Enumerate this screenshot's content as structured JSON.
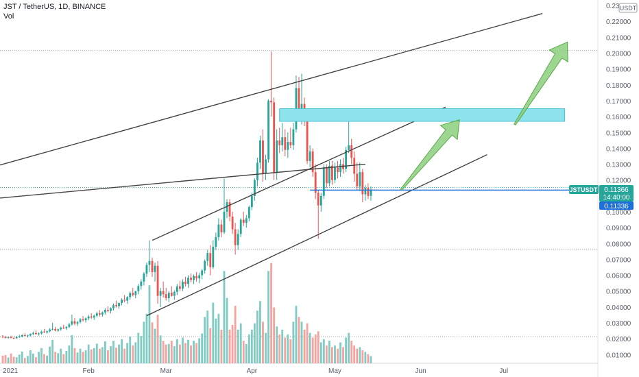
{
  "header": {
    "symbol_line": "JST / TetherUS, 1D, BINANCE",
    "volume_label": "Vol",
    "currency_badge": "USDT"
  },
  "price_badges": {
    "symbol": "JSTUSDT",
    "last_price": "0.11366",
    "countdown": "14:40:00",
    "prev_price": "0.11336"
  },
  "chart_data": {
    "type": "candlestick",
    "y_axis": {
      "ticks": [
        "0.23000",
        "0.22000",
        "0.21000",
        "0.20000",
        "0.19000",
        "0.18000",
        "0.17000",
        "0.16000",
        "0.15000",
        "0.14000",
        "0.13000",
        "0.12000",
        "0.11000",
        "0.10000",
        "0.09000",
        "0.08000",
        "0.07000",
        "0.06000",
        "0.05000",
        "0.04000",
        "0.03000",
        "0.02000",
        "0.01000"
      ],
      "range": [
        0.0045,
        0.2335
      ]
    },
    "x_axis": {
      "ticks": [
        {
          "label": "2021",
          "day": 0
        },
        {
          "label": "Feb",
          "day": 31
        },
        {
          "label": "Mar",
          "day": 59
        },
        {
          "label": "Apr",
          "day": 90
        },
        {
          "label": "May",
          "day": 120
        },
        {
          "label": "Jun",
          "day": 151
        },
        {
          "label": "Jul",
          "day": 181
        }
      ],
      "range_days": [
        0,
        215
      ]
    },
    "colors": {
      "up": "#26a69a",
      "down": "#ef5350",
      "vol_up": "#80cbc4",
      "vol_down": "#f4a39f",
      "level": "#1e6fd9",
      "box": "#8de3ec",
      "arrow": "#8ccf7e",
      "trend": "#444444"
    },
    "candles": [
      [
        0.0213,
        0.0222,
        0.0204,
        0.0209
      ],
      [
        0.0209,
        0.0218,
        0.0201,
        0.0206
      ],
      [
        0.0206,
        0.0214,
        0.0199,
        0.021
      ],
      [
        0.021,
        0.0219,
        0.0203,
        0.0204
      ],
      [
        0.0204,
        0.0212,
        0.0196,
        0.0203
      ],
      [
        0.0203,
        0.0216,
        0.0199,
        0.0212
      ],
      [
        0.0212,
        0.0225,
        0.0205,
        0.0214
      ],
      [
        0.0214,
        0.0228,
        0.0208,
        0.0223
      ],
      [
        0.0223,
        0.0236,
        0.0215,
        0.0217
      ],
      [
        0.0217,
        0.0226,
        0.0207,
        0.0221
      ],
      [
        0.0221,
        0.0234,
        0.0214,
        0.023
      ],
      [
        0.023,
        0.0245,
        0.0222,
        0.0236
      ],
      [
        0.0236,
        0.0252,
        0.0226,
        0.0228
      ],
      [
        0.0228,
        0.024,
        0.0219,
        0.0233
      ],
      [
        0.0233,
        0.0251,
        0.0226,
        0.0245
      ],
      [
        0.0245,
        0.0262,
        0.0236,
        0.024
      ],
      [
        0.024,
        0.0252,
        0.0231,
        0.0247
      ],
      [
        0.0247,
        0.0266,
        0.024,
        0.0258
      ],
      [
        0.0258,
        0.03,
        0.0252,
        0.0262
      ],
      [
        0.0262,
        0.0275,
        0.0246,
        0.0251
      ],
      [
        0.0251,
        0.0264,
        0.0243,
        0.0259
      ],
      [
        0.0259,
        0.0276,
        0.025,
        0.027
      ],
      [
        0.027,
        0.0288,
        0.0261,
        0.0265
      ],
      [
        0.0265,
        0.0279,
        0.0255,
        0.0274
      ],
      [
        0.0274,
        0.03,
        0.0266,
        0.029
      ],
      [
        0.029,
        0.0352,
        0.0282,
        0.031
      ],
      [
        0.031,
        0.033,
        0.0285,
        0.0295
      ],
      [
        0.0295,
        0.0312,
        0.028,
        0.0305
      ],
      [
        0.0305,
        0.0331,
        0.0296,
        0.0322
      ],
      [
        0.0322,
        0.0343,
        0.0308,
        0.0316
      ],
      [
        0.0316,
        0.0335,
        0.0302,
        0.0328
      ],
      [
        0.0328,
        0.035,
        0.0316,
        0.034
      ],
      [
        0.034,
        0.0361,
        0.0326,
        0.0333
      ],
      [
        0.0333,
        0.0352,
        0.0319,
        0.0345
      ],
      [
        0.0345,
        0.037,
        0.0334,
        0.036
      ],
      [
        0.036,
        0.038,
        0.034,
        0.0352
      ],
      [
        0.0352,
        0.0372,
        0.0339,
        0.0366
      ],
      [
        0.0366,
        0.0392,
        0.0352,
        0.0382
      ],
      [
        0.0382,
        0.0404,
        0.0366,
        0.0375
      ],
      [
        0.0375,
        0.0397,
        0.036,
        0.0392
      ],
      [
        0.0392,
        0.0422,
        0.0378,
        0.0412
      ],
      [
        0.0412,
        0.044,
        0.0396,
        0.0405
      ],
      [
        0.0405,
        0.0428,
        0.0388,
        0.0425
      ],
      [
        0.0425,
        0.0455,
        0.041,
        0.0446
      ],
      [
        0.0446,
        0.0475,
        0.043,
        0.044
      ],
      [
        0.044,
        0.0468,
        0.042,
        0.0462
      ],
      [
        0.0462,
        0.0498,
        0.0445,
        0.0488
      ],
      [
        0.0488,
        0.052,
        0.0466,
        0.0475
      ],
      [
        0.0475,
        0.0502,
        0.0455,
        0.05
      ],
      [
        0.05,
        0.0545,
        0.048,
        0.0532
      ],
      [
        0.0532,
        0.0575,
        0.051,
        0.056
      ],
      [
        0.056,
        0.062,
        0.0535,
        0.061
      ],
      [
        0.061,
        0.068,
        0.059,
        0.0665
      ],
      [
        0.0665,
        0.082,
        0.062,
        0.069
      ],
      [
        0.069,
        0.0712,
        0.059,
        0.062
      ],
      [
        0.062,
        0.068,
        0.056,
        0.066
      ],
      [
        0.066,
        0.069,
        0.042,
        0.047
      ],
      [
        0.047,
        0.052,
        0.04,
        0.05
      ],
      [
        0.05,
        0.056,
        0.046,
        0.048
      ],
      [
        0.048,
        0.052,
        0.044,
        0.0455
      ],
      [
        0.0455,
        0.05,
        0.043,
        0.049
      ],
      [
        0.049,
        0.053,
        0.0465,
        0.047
      ],
      [
        0.047,
        0.0505,
        0.0445,
        0.0495
      ],
      [
        0.0495,
        0.0545,
        0.0475,
        0.053
      ],
      [
        0.053,
        0.0565,
        0.05,
        0.0515
      ],
      [
        0.0515,
        0.0575,
        0.05,
        0.056
      ],
      [
        0.056,
        0.059,
        0.053,
        0.0545
      ],
      [
        0.0545,
        0.06,
        0.052,
        0.0585
      ],
      [
        0.0585,
        0.061,
        0.0555,
        0.057
      ],
      [
        0.057,
        0.0605,
        0.0545,
        0.0595
      ],
      [
        0.0595,
        0.062,
        0.056,
        0.058
      ],
      [
        0.058,
        0.0615,
        0.055,
        0.06
      ],
      [
        0.06,
        0.064,
        0.0575,
        0.063
      ],
      [
        0.063,
        0.07,
        0.061,
        0.069
      ],
      [
        0.069,
        0.076,
        0.066,
        0.074
      ],
      [
        0.074,
        0.079,
        0.06,
        0.065
      ],
      [
        0.065,
        0.082,
        0.064,
        0.078
      ],
      [
        0.078,
        0.087,
        0.076,
        0.084
      ],
      [
        0.084,
        0.096,
        0.082,
        0.092
      ],
      [
        0.092,
        0.095,
        0.084,
        0.087
      ],
      [
        0.087,
        0.121,
        0.086,
        0.1
      ],
      [
        0.1,
        0.108,
        0.096,
        0.106
      ],
      [
        0.106,
        0.108,
        0.094,
        0.097
      ],
      [
        0.097,
        0.1,
        0.086,
        0.089
      ],
      [
        0.089,
        0.093,
        0.073,
        0.079
      ],
      [
        0.079,
        0.089,
        0.076,
        0.086
      ],
      [
        0.086,
        0.096,
        0.084,
        0.095
      ],
      [
        0.095,
        0.1,
        0.091,
        0.093
      ],
      [
        0.093,
        0.098,
        0.09,
        0.096
      ],
      [
        0.096,
        0.104,
        0.094,
        0.103
      ],
      [
        0.103,
        0.112,
        0.101,
        0.11
      ],
      [
        0.11,
        0.121,
        0.107,
        0.12
      ],
      [
        0.12,
        0.134,
        0.116,
        0.131
      ],
      [
        0.131,
        0.148,
        0.127,
        0.145
      ],
      [
        0.145,
        0.152,
        0.119,
        0.124
      ],
      [
        0.124,
        0.136,
        0.12,
        0.133
      ],
      [
        0.133,
        0.171,
        0.131,
        0.17
      ],
      [
        0.17,
        0.201,
        0.16,
        0.169
      ],
      [
        0.169,
        0.172,
        0.12,
        0.125
      ],
      [
        0.125,
        0.152,
        0.12,
        0.145
      ],
      [
        0.145,
        0.153,
        0.137,
        0.142
      ],
      [
        0.142,
        0.156,
        0.138,
        0.147
      ],
      [
        0.147,
        0.152,
        0.135,
        0.139
      ],
      [
        0.139,
        0.15,
        0.134,
        0.144
      ],
      [
        0.144,
        0.153,
        0.14,
        0.142
      ],
      [
        0.142,
        0.156,
        0.139,
        0.152
      ],
      [
        0.152,
        0.186,
        0.15,
        0.178
      ],
      [
        0.178,
        0.185,
        0.158,
        0.162
      ],
      [
        0.162,
        0.187,
        0.155,
        0.168
      ],
      [
        0.168,
        0.172,
        0.154,
        0.157
      ],
      [
        0.157,
        0.16,
        0.13,
        0.132
      ],
      [
        0.132,
        0.142,
        0.128,
        0.138
      ],
      [
        0.138,
        0.14,
        0.122,
        0.125
      ],
      [
        0.125,
        0.13,
        0.108,
        0.112
      ],
      [
        0.112,
        0.114,
        0.083,
        0.104
      ],
      [
        0.104,
        0.112,
        0.1,
        0.11
      ],
      [
        0.11,
        0.13,
        0.108,
        0.128
      ],
      [
        0.128,
        0.13,
        0.115,
        0.118
      ],
      [
        0.118,
        0.132,
        0.116,
        0.129
      ],
      [
        0.129,
        0.132,
        0.117,
        0.12
      ],
      [
        0.12,
        0.131,
        0.118,
        0.128
      ],
      [
        0.128,
        0.132,
        0.121,
        0.125
      ],
      [
        0.125,
        0.133,
        0.122,
        0.13
      ],
      [
        0.13,
        0.134,
        0.124,
        0.127
      ],
      [
        0.127,
        0.141,
        0.125,
        0.139
      ],
      [
        0.139,
        0.165,
        0.137,
        0.142
      ],
      [
        0.142,
        0.146,
        0.13,
        0.134
      ],
      [
        0.134,
        0.138,
        0.119,
        0.124
      ],
      [
        0.124,
        0.131,
        0.114,
        0.116
      ],
      [
        0.116,
        0.131,
        0.113,
        0.125
      ],
      [
        0.125,
        0.127,
        0.106,
        0.111
      ],
      [
        0.111,
        0.117,
        0.107,
        0.115
      ],
      [
        0.115,
        0.118,
        0.108,
        0.11
      ],
      [
        0.11,
        0.116,
        0.107,
        0.1137
      ]
    ],
    "volumes": [
      0.0048,
      0.0052,
      0.0036,
      0.0062,
      0.0041,
      0.0038,
      0.0055,
      0.0074,
      0.0033,
      0.0046,
      0.0082,
      0.0061,
      0.0038,
      0.0072,
      0.0096,
      0.0058,
      0.0048,
      0.0105,
      0.0148,
      0.0072,
      0.0064,
      0.0092,
      0.0058,
      0.0078,
      0.0112,
      0.0178,
      0.0096,
      0.0068,
      0.0092,
      0.0072,
      0.0082,
      0.0118,
      0.0088,
      0.0096,
      0.0124,
      0.0092,
      0.0102,
      0.0138,
      0.0082,
      0.0108,
      0.0142,
      0.0098,
      0.0118,
      0.0152,
      0.0092,
      0.0128,
      0.0168,
      0.0112,
      0.0132,
      0.0192,
      0.0172,
      0.0262,
      0.0312,
      0.0492,
      0.0258,
      0.0218,
      0.0306,
      0.0176,
      0.0142,
      0.0118,
      0.0122,
      0.0142,
      0.0108,
      0.0152,
      0.0118,
      0.0162,
      0.0128,
      0.0148,
      0.0112,
      0.0142,
      0.0128,
      0.0158,
      0.0188,
      0.0292,
      0.0332,
      0.0222,
      0.0382,
      0.0282,
      0.0312,
      0.0212,
      0.0582,
      0.0412,
      0.0212,
      0.0242,
      0.0362,
      0.0212,
      0.0252,
      0.0142,
      0.0122,
      0.0182,
      0.0212,
      0.0252,
      0.0332,
      0.0392,
      0.0262,
      0.0192,
      0.0582,
      0.0632,
      0.0352,
      0.0232,
      0.0182,
      0.0212,
      0.0162,
      0.0182,
      0.0152,
      0.0262,
      0.0362,
      0.0292,
      0.0262,
      0.0212,
      0.0252,
      0.0192,
      0.0162,
      0.0182,
      0.0202,
      0.0132,
      0.0152,
      0.0112,
      0.0142,
      0.0102,
      0.0112,
      0.0092,
      0.0132,
      0.0102,
      0.0162,
      0.0192,
      0.0142,
      0.0112,
      0.0092,
      0.0102,
      0.0082,
      0.0072,
      0.0058,
      0.0045
    ]
  }
}
